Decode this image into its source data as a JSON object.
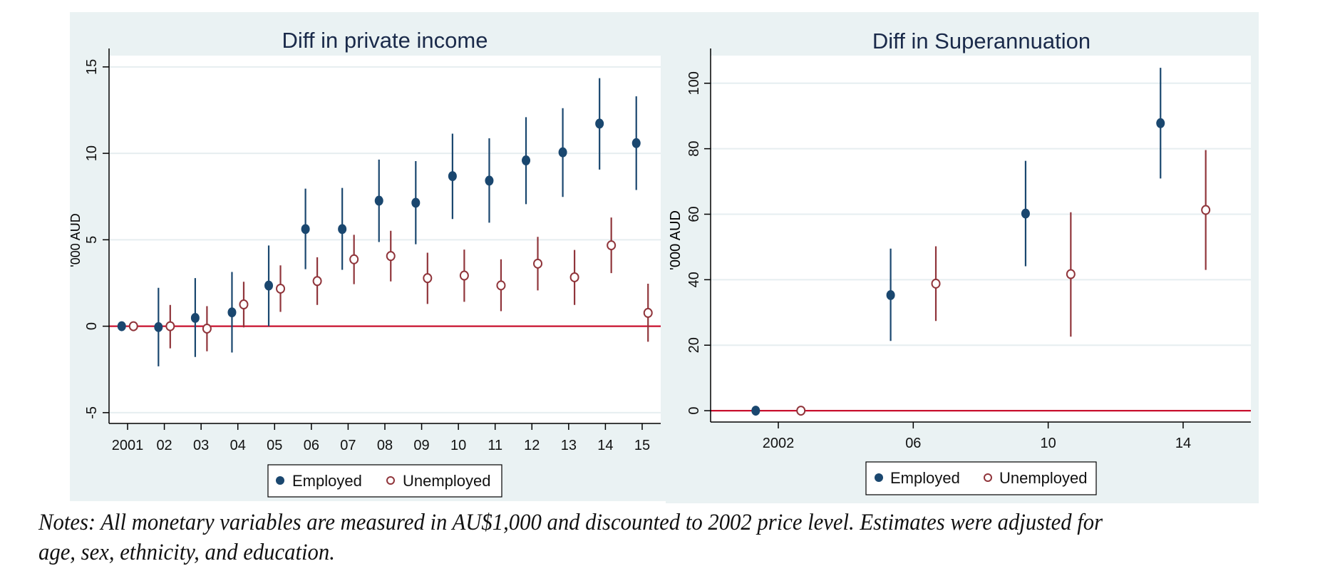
{
  "colors": {
    "panel_bg": "#eaf2f3",
    "plot_bg": "#ffffff",
    "grid": "#e6eef0",
    "axis": "#000000",
    "zero_line": "#c8102e",
    "employed": "#1a476f",
    "unemployed": "#90353b",
    "title": "#1a2a4a"
  },
  "chart_data": [
    {
      "type": "scatter",
      "subtype": "coefficient plot with 95% CI bars",
      "title": "Diff in private income",
      "xlabel": "",
      "ylabel": "'000 AUD",
      "ylim": [
        -5.8,
        15.6
      ],
      "yticks": [
        -5,
        0,
        5,
        10,
        15
      ],
      "ytick_labels": [
        "-5",
        "0",
        "5",
        "10",
        "15"
      ],
      "xlim": [
        2000.5,
        2015.4
      ],
      "xticks": [
        2001,
        2002,
        2003,
        2004,
        2005,
        2006,
        2007,
        2008,
        2009,
        2010,
        2011,
        2012,
        2013,
        2014,
        2015
      ],
      "xtick_labels": [
        "2001",
        "02",
        "03",
        "04",
        "05",
        "06",
        "07",
        "08",
        "09",
        "10",
        "11",
        "12",
        "13",
        "14",
        "15"
      ],
      "grid": true,
      "reference_line": 0,
      "legend": {
        "position": "bottom-center",
        "entries": [
          "Employed",
          "Unemployed"
        ]
      },
      "series": [
        {
          "name": "Employed",
          "marker": "filled-circle",
          "x_offset": -0.16,
          "x": [
            2001,
            2002,
            2003,
            2004,
            2005,
            2006,
            2007,
            2008,
            2009,
            2010,
            2011,
            2012,
            2013,
            2014,
            2015
          ],
          "y": [
            0.0,
            -0.05,
            0.48,
            0.8,
            2.35,
            5.62,
            5.62,
            7.26,
            7.14,
            8.68,
            8.42,
            9.59,
            10.06,
            11.72,
            10.59
          ],
          "ci_low": [
            0.0,
            -2.32,
            -1.78,
            -1.52,
            0.0,
            3.3,
            3.26,
            4.87,
            4.74,
            6.2,
            5.99,
            7.06,
            7.48,
            9.06,
            7.88
          ],
          "ci_high": [
            0.0,
            2.22,
            2.78,
            3.14,
            4.67,
            7.96,
            8.0,
            9.64,
            9.55,
            11.14,
            10.87,
            12.09,
            12.61,
            14.35,
            13.3
          ]
        },
        {
          "name": "Unemployed",
          "marker": "hollow-circle",
          "x_offset": 0.16,
          "x": [
            2001,
            2002,
            2003,
            2004,
            2005,
            2006,
            2007,
            2008,
            2009,
            2010,
            2011,
            2012,
            2013,
            2014,
            2015
          ],
          "y": [
            0.0,
            0.0,
            -0.14,
            1.26,
            2.17,
            2.61,
            3.87,
            4.06,
            2.78,
            2.93,
            2.36,
            3.62,
            2.83,
            4.68,
            0.77
          ],
          "ci_low": [
            0.0,
            -1.28,
            -1.45,
            -0.07,
            0.83,
            1.23,
            2.43,
            2.59,
            1.29,
            1.41,
            0.87,
            2.07,
            1.23,
            3.07,
            -0.9
          ],
          "ci_high": [
            0.0,
            1.23,
            1.16,
            2.57,
            3.52,
            3.99,
            5.29,
            5.52,
            4.25,
            4.43,
            3.87,
            5.17,
            4.41,
            6.29,
            2.46
          ]
        }
      ]
    },
    {
      "type": "scatter",
      "subtype": "coefficient plot with 95% CI bars",
      "title": "Diff in Superannuation",
      "xlabel": "",
      "ylabel": "'000 AUD",
      "ylim": [
        -4,
        108
      ],
      "yticks": [
        0,
        20,
        40,
        60,
        80,
        100
      ],
      "ytick_labels": [
        "0",
        "20",
        "40",
        "60",
        "80",
        "100"
      ],
      "xlim": [
        2000.0,
        2016.0
      ],
      "xticks": [
        2002,
        2006,
        2010,
        2014
      ],
      "xtick_labels": [
        "2002",
        "06",
        "10",
        "14"
      ],
      "grid": true,
      "reference_line": 0,
      "legend": {
        "position": "bottom-center",
        "entries": [
          "Employed",
          "Unemployed"
        ]
      },
      "series": [
        {
          "name": "Employed",
          "marker": "filled-circle",
          "x": [
            2001.33,
            2005.33,
            2009.33,
            2013.33
          ],
          "y": [
            0.0,
            35.3,
            60.2,
            87.8
          ],
          "ci_low": [
            0.0,
            21.3,
            44.1,
            70.9
          ],
          "ci_high": [
            0.0,
            49.5,
            76.3,
            104.7
          ]
        },
        {
          "name": "Unemployed",
          "marker": "hollow-circle",
          "x": [
            2002.67,
            2006.67,
            2010.67,
            2014.67
          ],
          "y": [
            0.0,
            38.8,
            41.7,
            61.3
          ],
          "ci_low": [
            0.0,
            27.4,
            22.6,
            43.0
          ],
          "ci_high": [
            0.0,
            50.2,
            60.6,
            79.6
          ]
        }
      ]
    }
  ],
  "notes": {
    "line1": "Notes: All monetary variables are measured in AU$1,000 and discounted to 2002 price level. Estimates were adjusted for",
    "line2": "age, sex, ethnicity, and education."
  }
}
